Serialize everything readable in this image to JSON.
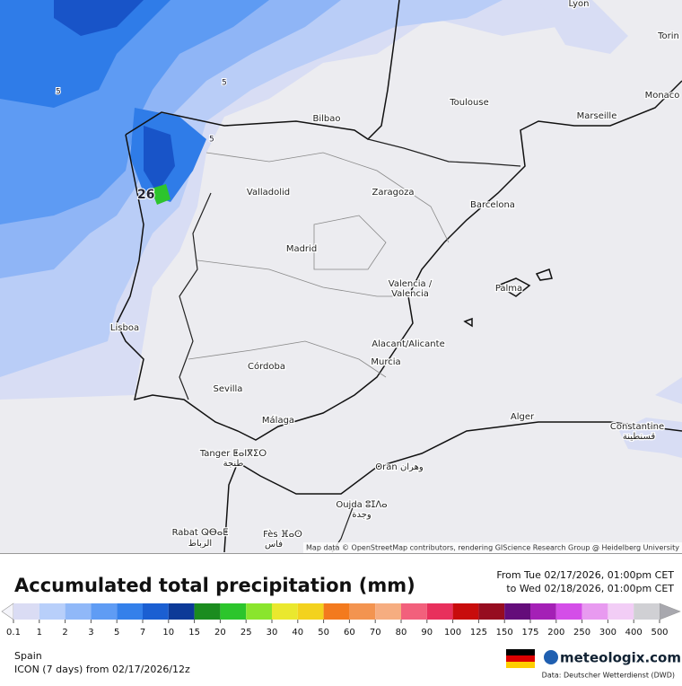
{
  "map": {
    "cities": [
      "Lyon",
      "Torin",
      "Monaco",
      "Toulouse",
      "Marseille",
      "Bilbao",
      "Valladolid",
      "Zaragoza",
      "Barcelona",
      "Madrid",
      "Valencia /",
      "Valencia",
      "Palma",
      "Lisboa",
      "Alacant/Alicante",
      "Murcia",
      "Córdoba",
      "Sevilla",
      "Alger",
      "Málaga",
      "Constantine",
      "قسنطينة",
      "Tanger ⵟⴰⵏⴳⵉⵔ",
      "طنجة",
      "Oran وهران",
      "Oujda ⵓⵊⴷⴰ",
      "وجدة",
      "Rabat ⵕⴱⴰⵟ",
      "الرباط",
      "Fès ⴼⴰⵙ",
      "فاس"
    ],
    "contour_labels": [
      "5",
      "5",
      "5",
      "26"
    ],
    "attribution": "Map data © OpenStreetMap contributors, rendering GIScience Research Group @ Heidelberg University"
  },
  "legend": {
    "title": "Accumulated total precipitation (mm)",
    "period_from": "From Tue 02/17/2026, 01:00pm CET",
    "period_to": "to Wed 02/18/2026, 01:00pm CET",
    "colorbar": {
      "ticks": [
        0.1,
        1,
        2,
        3,
        5,
        7,
        10,
        15,
        20,
        25,
        30,
        40,
        50,
        60,
        70,
        80,
        90,
        100,
        125,
        150,
        175,
        200,
        250,
        300,
        400,
        500
      ],
      "under_color": "#f4f4fa",
      "over_color": "#a8a8ae",
      "colors": [
        "#dadcf4",
        "#b8cffa",
        "#90b8f8",
        "#5f9cf4",
        "#3480ea",
        "#1b5fd2",
        "#0c3a98",
        "#1b8c1f",
        "#2cc52c",
        "#8ae52d",
        "#eae82e",
        "#f3d21e",
        "#f37a1e",
        "#f39450",
        "#f6ad80",
        "#f2607c",
        "#e8305c",
        "#c80c0c",
        "#960c20",
        "#640c7a",
        "#a420b6",
        "#d44ee8",
        "#e89af0",
        "#f2cdf6",
        "#d0d0d4"
      ]
    }
  },
  "footer": {
    "region": "Spain",
    "model": "ICON (7 days) from 02/17/2026/12z",
    "brand": "meteologix.com",
    "source": "Data: Deutscher Wetterdienst (DWD)"
  }
}
